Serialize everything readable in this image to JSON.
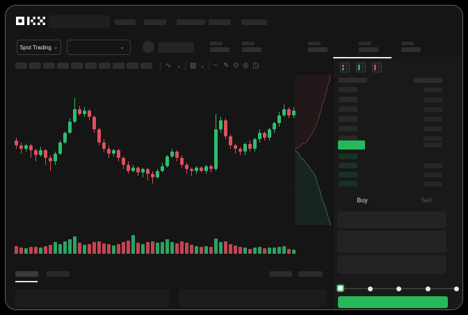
{
  "header": {
    "brand": "OKX"
  },
  "subheader": {
    "market_selector_label": "Spot Trading"
  },
  "icons": {
    "chevron_down": "⌄",
    "indicator": "∿",
    "candle_style": "▥",
    "line": "~",
    "draw": "✎",
    "camera": "⊙",
    "settings": "◎",
    "fullscreen": "◳"
  },
  "colors": {
    "accent_green": "#27b859",
    "candle_green": "#2ebd70",
    "candle_red": "#df4f5e",
    "depth_ask_line": "rgba(224,90,100,0.55)",
    "depth_ask_fill": "rgba(224,74,90,0.07)",
    "depth_bid_line": "rgba(110,205,180,0.5)",
    "depth_bid_fill": "rgba(60,190,140,0.09)"
  },
  "toolbar": {
    "timeframe_slot_count": 10
  },
  "order_panel": {
    "buy_tab": "Buy",
    "sell_tab": "Sell",
    "slider_stops": [
      0,
      25,
      50,
      75,
      100
    ],
    "ask_row_count": 6,
    "bid_row_count": 4
  },
  "chart_data": {
    "type": "candlestick_with_volume_and_depth",
    "title": "",
    "axes_labeled": false,
    "candles": [
      [
        63,
        65,
        58,
        60
      ],
      [
        60,
        62,
        55,
        58
      ],
      [
        58,
        61,
        56,
        60
      ],
      [
        60,
        61,
        52,
        57
      ],
      [
        57,
        58,
        50,
        54
      ],
      [
        54,
        59,
        53,
        57
      ],
      [
        57,
        58,
        48,
        52
      ],
      [
        52,
        54,
        44,
        50
      ],
      [
        50,
        56,
        48,
        55
      ],
      [
        55,
        63,
        54,
        62
      ],
      [
        62,
        69,
        61,
        68
      ],
      [
        68,
        77,
        67,
        75
      ],
      [
        75,
        90,
        74,
        83
      ],
      [
        83,
        85,
        79,
        80
      ],
      [
        80,
        84,
        78,
        82
      ],
      [
        82,
        83,
        76,
        78
      ],
      [
        78,
        79,
        68,
        70
      ],
      [
        70,
        71,
        60,
        62
      ],
      [
        62,
        64,
        56,
        58
      ],
      [
        58,
        60,
        52,
        55
      ],
      [
        55,
        58,
        53,
        57
      ],
      [
        57,
        58,
        50,
        52
      ],
      [
        52,
        53,
        45,
        48
      ],
      [
        48,
        50,
        42,
        44
      ],
      [
        44,
        48,
        43,
        46
      ],
      [
        46,
        47,
        41,
        43
      ],
      [
        43,
        46,
        40,
        45
      ],
      [
        45,
        46,
        38,
        42
      ],
      [
        42,
        44,
        36,
        40
      ],
      [
        40,
        45,
        39,
        44
      ],
      [
        44,
        49,
        43,
        47
      ],
      [
        47,
        54,
        46,
        53
      ],
      [
        53,
        58,
        52,
        56
      ],
      [
        56,
        57,
        50,
        52
      ],
      [
        52,
        54,
        46,
        48
      ],
      [
        48,
        49,
        42,
        45
      ],
      [
        45,
        46,
        41,
        44
      ],
      [
        44,
        47,
        42,
        46
      ],
      [
        46,
        47,
        43,
        44
      ],
      [
        44,
        48,
        42,
        47
      ],
      [
        47,
        48,
        43,
        45
      ],
      [
        45,
        80,
        44,
        70
      ],
      [
        70,
        78,
        68,
        76
      ],
      [
        76,
        77,
        64,
        66
      ],
      [
        66,
        67,
        58,
        60
      ],
      [
        60,
        61,
        55,
        58
      ],
      [
        58,
        59,
        54,
        56
      ],
      [
        56,
        62,
        54,
        61
      ],
      [
        61,
        63,
        56,
        58
      ],
      [
        58,
        65,
        56,
        64
      ],
      [
        64,
        70,
        62,
        68
      ],
      [
        68,
        69,
        63,
        65
      ],
      [
        65,
        71,
        63,
        70
      ],
      [
        70,
        75,
        68,
        74
      ],
      [
        74,
        81,
        72,
        79
      ],
      [
        79,
        86,
        78,
        83
      ],
      [
        83,
        84,
        77,
        79
      ],
      [
        79,
        84,
        77,
        82
      ]
    ],
    "volumes": [
      32,
      26,
      22,
      30,
      28,
      24,
      34,
      42,
      58,
      46,
      62,
      72,
      88,
      52,
      42,
      46,
      56,
      62,
      50,
      44,
      36,
      46,
      56,
      66,
      98,
      52,
      46,
      56,
      62,
      52,
      58,
      72,
      56,
      48,
      62,
      52,
      40,
      34,
      30,
      32,
      28,
      78,
      56,
      60,
      46,
      38,
      30,
      24,
      18,
      26,
      30,
      20,
      24,
      26,
      30,
      34,
      16,
      12
    ],
    "depth": {
      "asks": [
        [
          0,
          0.49
        ],
        [
          0.08,
          0.485
        ],
        [
          0.18,
          0.46
        ],
        [
          0.3,
          0.45
        ],
        [
          0.38,
          0.42
        ],
        [
          0.46,
          0.39
        ],
        [
          0.52,
          0.36
        ],
        [
          0.56,
          0.34
        ],
        [
          0.6,
          0.31
        ],
        [
          0.64,
          0.29
        ],
        [
          0.66,
          0.26
        ],
        [
          0.7,
          0.24
        ],
        [
          0.72,
          0.2
        ],
        [
          0.76,
          0.18
        ],
        [
          0.8,
          0.155
        ],
        [
          0.82,
          0.12
        ],
        [
          0.86,
          0.1
        ],
        [
          0.88,
          0.06
        ],
        [
          0.92,
          0.05
        ],
        [
          0.95,
          0.0
        ]
      ],
      "bids": [
        [
          0,
          0.5
        ],
        [
          0.1,
          0.52
        ],
        [
          0.14,
          0.545
        ],
        [
          0.22,
          0.56
        ],
        [
          0.3,
          0.585
        ],
        [
          0.36,
          0.6
        ],
        [
          0.42,
          0.63
        ],
        [
          0.5,
          0.65
        ],
        [
          0.56,
          0.68
        ],
        [
          0.6,
          0.72
        ],
        [
          0.64,
          0.75
        ],
        [
          0.68,
          0.78
        ],
        [
          0.72,
          0.82
        ],
        [
          0.78,
          0.86
        ],
        [
          0.84,
          0.9
        ],
        [
          0.88,
          0.94
        ],
        [
          0.92,
          0.97
        ],
        [
          0.96,
          1.0
        ]
      ]
    }
  }
}
